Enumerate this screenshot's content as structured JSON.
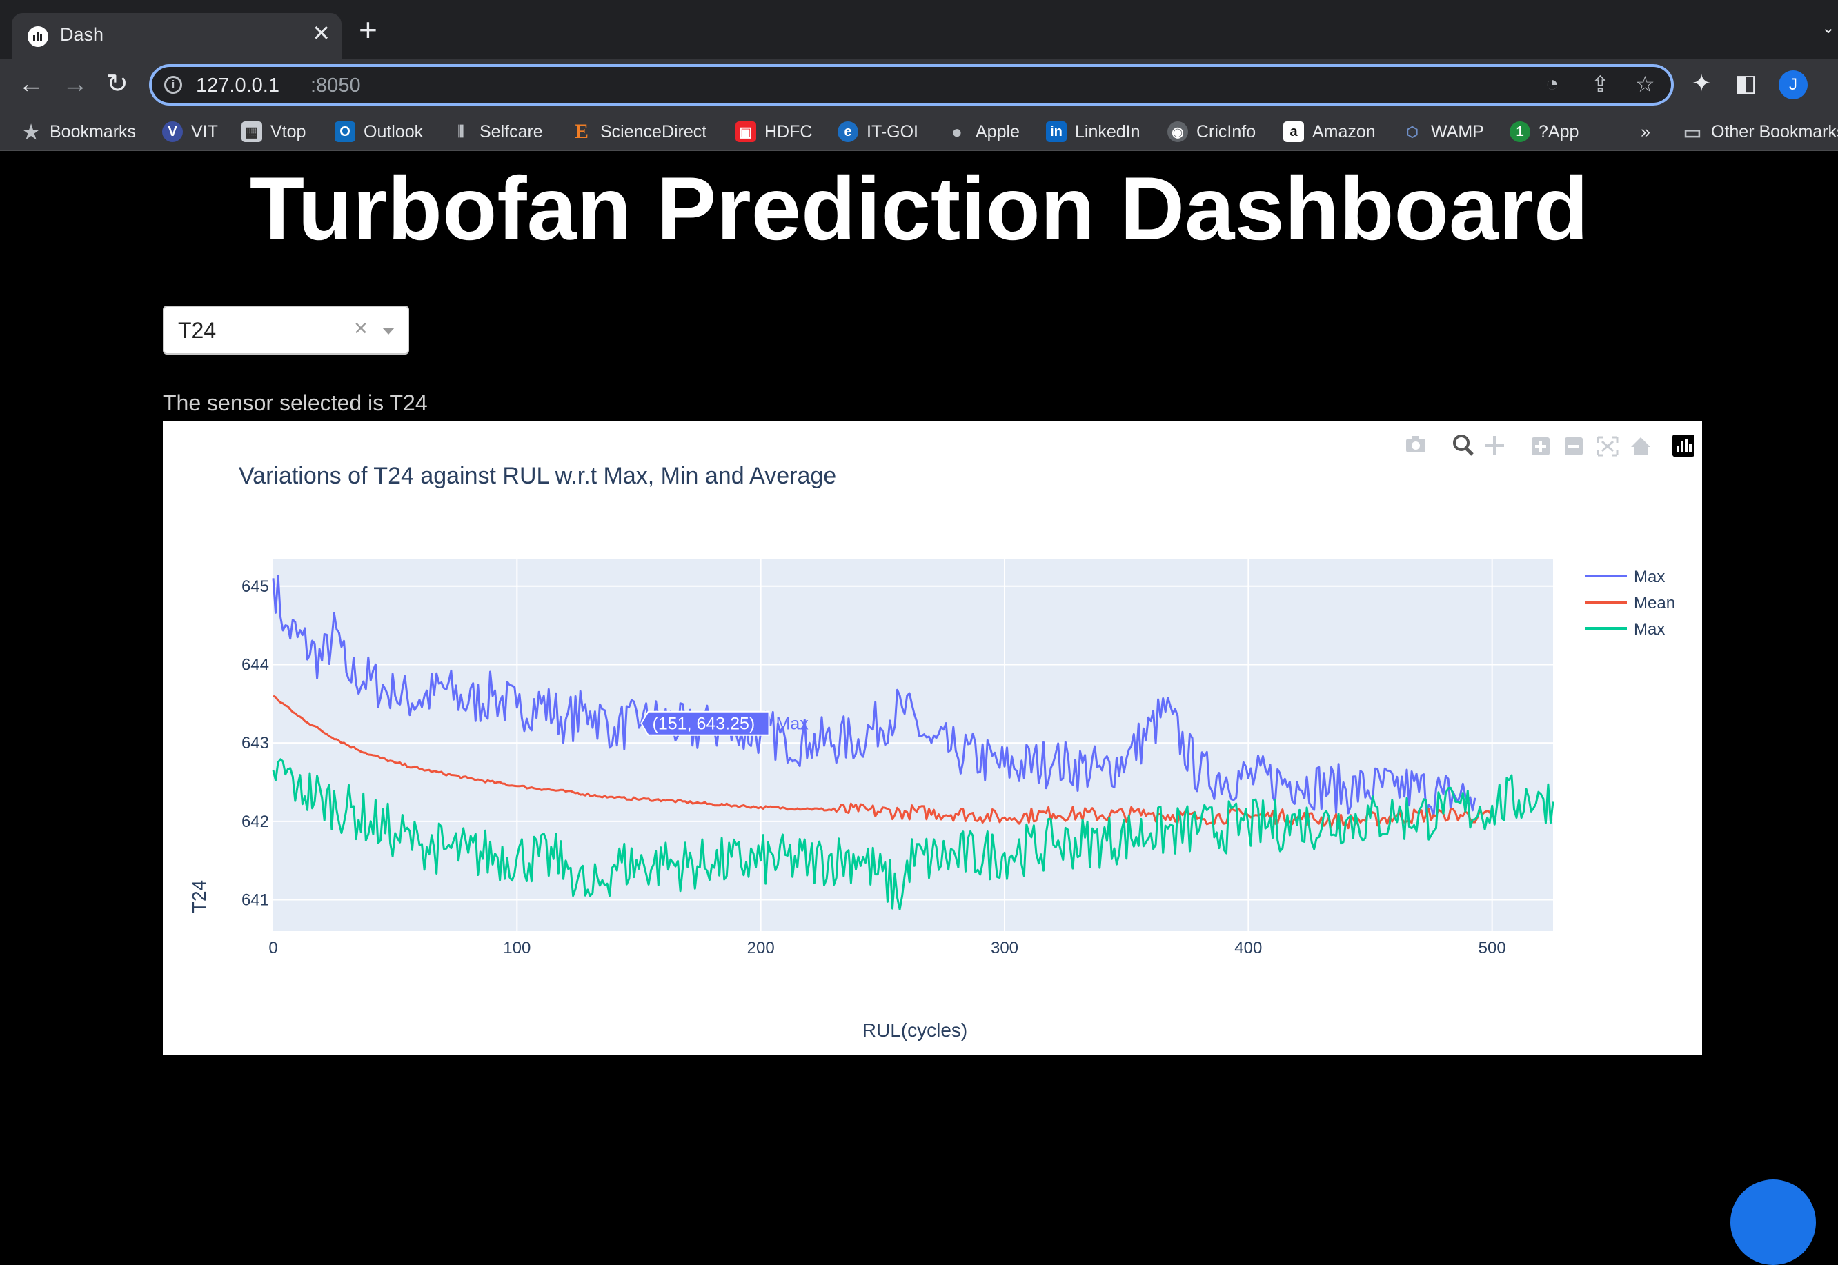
{
  "browser": {
    "tab_title": "Dash",
    "url_host": "127.0.0.1",
    "url_port": ":8050",
    "profile_initial": "J",
    "bookmarks": [
      {
        "label": "Bookmarks",
        "icon": "star-icon"
      },
      {
        "label": "VIT",
        "icon": "vit-icon"
      },
      {
        "label": "Vtop",
        "icon": "vtop-icon"
      },
      {
        "label": "Outlook",
        "icon": "outlook-icon"
      },
      {
        "label": "Selfcare",
        "icon": "selfcare-icon"
      },
      {
        "label": "ScienceDirect",
        "icon": "sciencedirect-icon"
      },
      {
        "label": "HDFC",
        "icon": "hdfc-icon"
      },
      {
        "label": "IT-GOI",
        "icon": "itgoi-icon"
      },
      {
        "label": "Apple",
        "icon": "apple-icon"
      },
      {
        "label": "LinkedIn",
        "icon": "linkedin-icon"
      },
      {
        "label": "CricInfo",
        "icon": "cricinfo-icon"
      },
      {
        "label": "Amazon",
        "icon": "amazon-icon"
      },
      {
        "label": "WAMP",
        "icon": "wamp-icon"
      },
      {
        "label": "?App",
        "icon": "app-icon"
      }
    ],
    "overflow": "»",
    "other_bookmarks": "Other Bookmarks"
  },
  "page": {
    "title": "Turbofan Prediction Dashboard",
    "dropdown_value": "T24",
    "clear_glyph": "×",
    "sensor_text": "The sensor selected is T24"
  },
  "chart_data": {
    "type": "line",
    "title": "Variations of T24 against RUL w.r.t Max, Min and Average",
    "xlabel": "RUL(cycles)",
    "ylabel": "T24",
    "xlim": [
      0,
      525
    ],
    "ylim": [
      640.6,
      645.35
    ],
    "xticks": [
      0,
      100,
      200,
      300,
      400,
      500
    ],
    "yticks": [
      641,
      642,
      643,
      644,
      645
    ],
    "legend_position": "right",
    "hover_label": {
      "text": "(151, 643.25)",
      "series": "Max",
      "x": 151,
      "y": 643.25
    },
    "series": [
      {
        "name": "Max",
        "color": "#636efa",
        "x": [
          0,
          5,
          10,
          20,
          26,
          30,
          40,
          50,
          60,
          70,
          80,
          90,
          100,
          110,
          120,
          130,
          140,
          151,
          160,
          170,
          180,
          190,
          200,
          210,
          220,
          240,
          258,
          270,
          280,
          300,
          320,
          340,
          350,
          366,
          380,
          400,
          420,
          440,
          460,
          480,
          493
        ],
        "y": [
          645.1,
          644.5,
          644.35,
          644.05,
          644.45,
          643.9,
          643.8,
          643.6,
          643.55,
          643.7,
          643.5,
          643.6,
          643.45,
          643.5,
          643.3,
          643.4,
          643.2,
          643.25,
          643.3,
          643.15,
          643.2,
          643.1,
          643.15,
          643.05,
          643.0,
          643.05,
          643.45,
          643.0,
          642.9,
          642.7,
          642.75,
          642.65,
          642.8,
          643.4,
          642.6,
          642.55,
          642.5,
          642.4,
          642.45,
          642.35,
          642.3
        ]
      },
      {
        "name": "Mean",
        "color": "#ef553b",
        "x": [
          0,
          10,
          20,
          30,
          40,
          50,
          60,
          80,
          100,
          120,
          140,
          160,
          180,
          200,
          220,
          240,
          260,
          280,
          300,
          320,
          340,
          360,
          380,
          400,
          420,
          440,
          460,
          480,
          500
        ],
        "y": [
          643.6,
          643.35,
          643.15,
          642.98,
          642.85,
          642.75,
          642.67,
          642.55,
          642.45,
          642.38,
          642.3,
          642.27,
          642.22,
          642.18,
          642.16,
          642.13,
          642.12,
          642.1,
          642.05,
          642.1,
          642.08,
          642.1,
          642.05,
          642.08,
          642.05,
          642.0,
          642.05,
          642.1,
          642.05
        ]
      },
      {
        "name": "Max",
        "color": "#00cc96",
        "x": [
          0,
          5,
          10,
          20,
          30,
          40,
          50,
          60,
          70,
          80,
          100,
          120,
          130,
          140,
          160,
          180,
          200,
          220,
          240,
          258,
          260,
          280,
          300,
          320,
          340,
          360,
          380,
          400,
          420,
          440,
          460,
          480,
          500,
          520,
          525
        ],
        "y": [
          642.65,
          642.6,
          642.45,
          642.3,
          642.15,
          642.0,
          641.85,
          641.7,
          641.65,
          641.6,
          641.55,
          641.5,
          641.05,
          641.45,
          641.45,
          641.45,
          641.5,
          641.5,
          641.55,
          641.05,
          641.5,
          641.55,
          641.6,
          641.7,
          641.75,
          641.85,
          641.9,
          641.95,
          641.95,
          642.0,
          642.05,
          642.1,
          642.2,
          642.35,
          642.25
        ]
      }
    ]
  }
}
